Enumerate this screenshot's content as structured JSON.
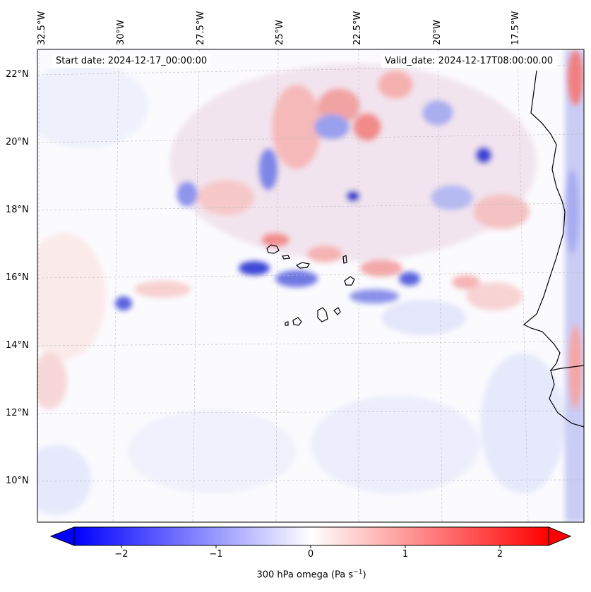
{
  "map": {
    "start_date": "Start date: 2024-12-17_00:00:00",
    "valid_date": "Valid_date: 2024-12-17T08:00:00.00",
    "latitude_labels": [
      "22°N",
      "20°N",
      "18°N",
      "16°N",
      "14°N",
      "12°N",
      "10°N"
    ],
    "longitude_labels": [
      "32.5°W",
      "30°W",
      "27.5°W",
      "25°W",
      "22.5°W",
      "20°W",
      "17.5°W"
    ],
    "features": [
      "Cape Verde islands",
      "West African coastline (Mauritania / Senegal)"
    ]
  },
  "colorbar": {
    "label": "300 hPa omega (Pa s",
    "label_superscript": "−1",
    "label_close": ")",
    "tick_labels": [
      "−2",
      "−1",
      "0",
      "1",
      "2"
    ],
    "range": [
      -2.6,
      2.6
    ],
    "colors": {
      "negative": "#0000ff",
      "zero": "#ffffff",
      "positive": "#ff0000"
    }
  }
}
